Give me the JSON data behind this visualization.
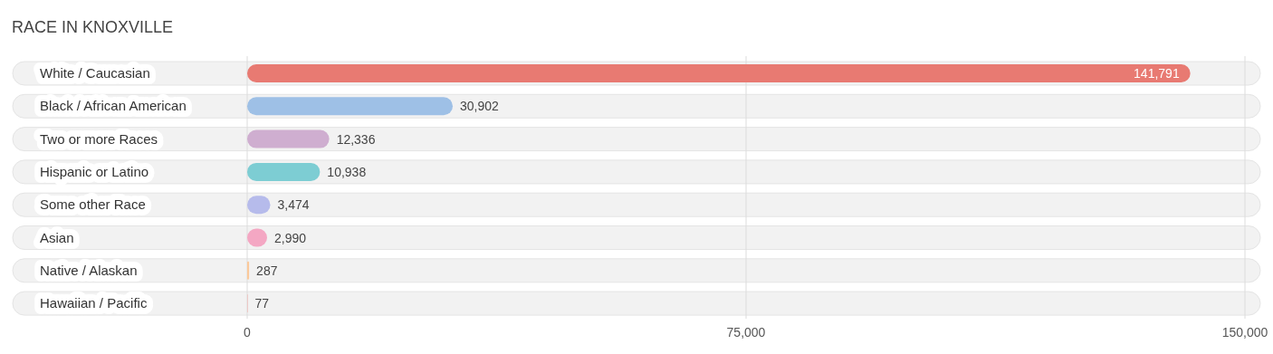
{
  "chart_data": {
    "type": "bar",
    "orientation": "horizontal",
    "title": "RACE IN KNOXVILLE",
    "categories": [
      "White / Caucasian",
      "Black / African American",
      "Two or more Races",
      "Hispanic or Latino",
      "Some other Race",
      "Asian",
      "Native / Alaskan",
      "Hawaiian / Pacific"
    ],
    "values": [
      141791,
      30902,
      12336,
      10938,
      3474,
      2990,
      287,
      77
    ],
    "colors": [
      "#e87a72",
      "#9ec0e6",
      "#cfaed0",
      "#7dcdd3",
      "#b6bbeb",
      "#f4a7c3",
      "#fbc99a",
      "#f2b3ad"
    ],
    "xlim": [
      0,
      150000
    ],
    "xticks": [
      {
        "value": 0,
        "label": "0"
      },
      {
        "value": 75000,
        "label": "75,000"
      },
      {
        "value": 150000,
        "label": "150,000"
      }
    ],
    "grid": "x",
    "value_labels": [
      "141,791",
      "30,902",
      "12,336",
      "10,938",
      "3,474",
      "2,990",
      "287",
      "77"
    ]
  }
}
